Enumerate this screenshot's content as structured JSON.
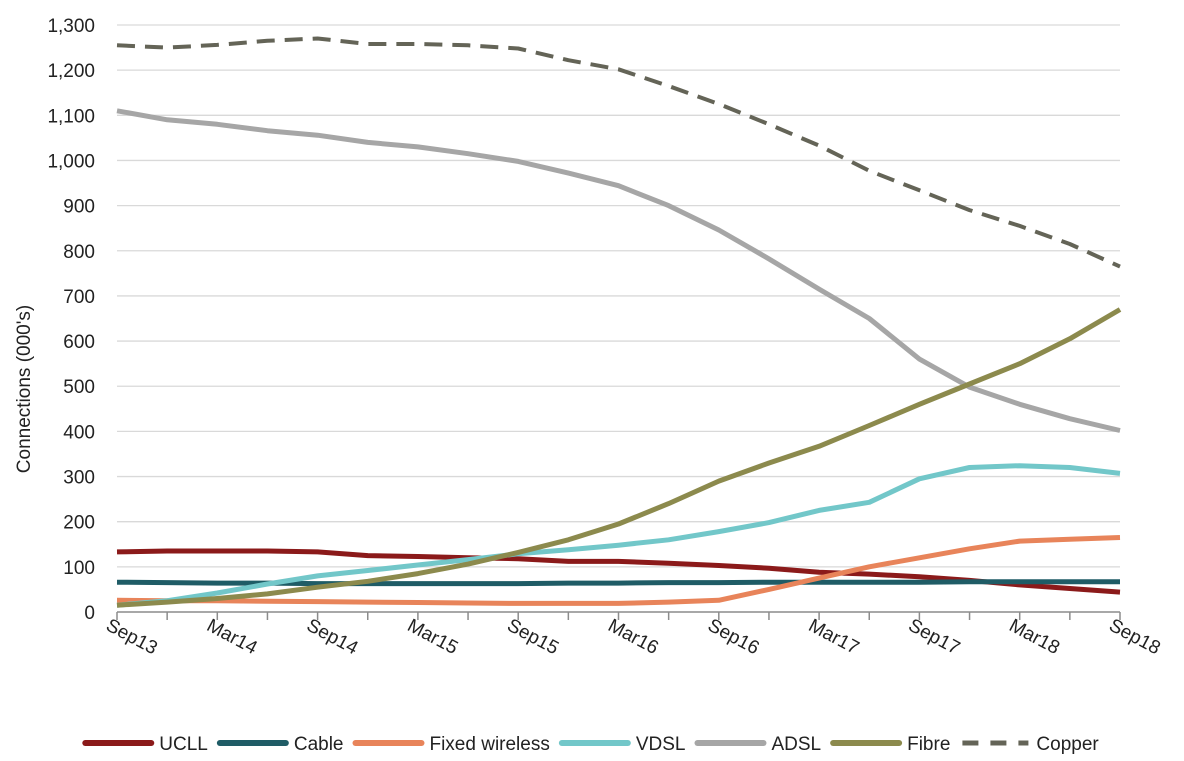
{
  "chart_data": {
    "type": "line",
    "title": "",
    "xlabel": "",
    "ylabel": "Connections (000's)",
    "ylim": [
      0,
      1300
    ],
    "yticks": [
      0,
      100,
      200,
      300,
      400,
      500,
      600,
      700,
      800,
      900,
      1000,
      1100,
      1200,
      1300
    ],
    "ytick_labels": [
      "0",
      "100",
      "200",
      "300",
      "400",
      "500",
      "600",
      "700",
      "800",
      "900",
      "1,000",
      "1,100",
      "1,200",
      "1,300"
    ],
    "x": [
      "Sep13",
      "Dec13",
      "Mar14",
      "Jun14",
      "Sep14",
      "Dec14",
      "Mar15",
      "Jun15",
      "Sep15",
      "Dec15",
      "Mar16",
      "Jun16",
      "Sep16",
      "Dec16",
      "Mar17",
      "Jun17",
      "Sep17",
      "Dec17",
      "Mar18",
      "Jun18",
      "Sep18"
    ],
    "xtick_labels": [
      "Sep13",
      "Mar14",
      "Sep14",
      "Mar15",
      "Sep15",
      "Mar16",
      "Sep16",
      "Mar17",
      "Sep17",
      "Mar18",
      "Sep18"
    ],
    "grid": true,
    "legend": "bottom",
    "series": [
      {
        "name": "UCLL",
        "color": "#8b1a1a",
        "dash": false,
        "values": [
          133,
          135,
          135,
          135,
          133,
          125,
          123,
          120,
          118,
          112,
          112,
          108,
          103,
          97,
          88,
          84,
          78,
          70,
          60,
          52,
          44
        ]
      },
      {
        "name": "Cable",
        "color": "#1f5c66",
        "dash": false,
        "values": [
          66,
          65,
          64,
          64,
          63,
          63,
          63,
          63,
          63,
          64,
          64,
          65,
          65,
          66,
          66,
          66,
          66,
          67,
          67,
          67,
          67
        ]
      },
      {
        "name": "Fixed wireless",
        "color": "#e8845a",
        "dash": false,
        "values": [
          26,
          25,
          25,
          24,
          23,
          22,
          21,
          20,
          19,
          19,
          19,
          22,
          26,
          50,
          75,
          100,
          120,
          140,
          157,
          161,
          165
        ]
      },
      {
        "name": "VDSL",
        "color": "#72c7c9",
        "dash": false,
        "values": [
          15,
          25,
          42,
          62,
          80,
          92,
          104,
          116,
          129,
          138,
          148,
          160,
          178,
          198,
          225,
          243,
          295,
          320,
          324,
          320,
          307
        ]
      },
      {
        "name": "ADSL",
        "color": "#a6a6a6",
        "dash": false,
        "values": [
          1110,
          1090,
          1080,
          1066,
          1056,
          1040,
          1030,
          1015,
          998,
          972,
          944,
          900,
          846,
          782,
          715,
          650,
          560,
          498,
          460,
          428,
          402
        ]
      },
      {
        "name": "Fibre",
        "color": "#8c8a4d",
        "dash": false,
        "values": [
          15,
          22,
          30,
          40,
          55,
          68,
          85,
          106,
          132,
          160,
          195,
          240,
          290,
          330,
          367,
          413,
          460,
          505,
          550,
          605,
          670
        ]
      },
      {
        "name": "Copper",
        "color": "#646457",
        "dash": true,
        "values": [
          1255,
          1250,
          1256,
          1265,
          1270,
          1258,
          1258,
          1255,
          1248,
          1222,
          1202,
          1165,
          1125,
          1080,
          1033,
          977,
          934,
          890,
          855,
          815,
          765
        ]
      }
    ]
  }
}
